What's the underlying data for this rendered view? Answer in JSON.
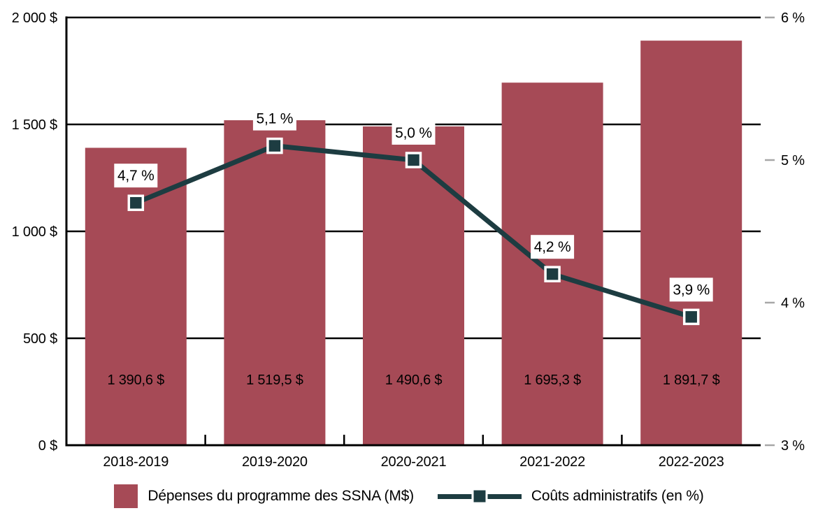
{
  "chart_data": {
    "type": "bar",
    "subtype": "combo-bar-line",
    "title": "",
    "categories": [
      "2018-2019",
      "2019-2020",
      "2020-2021",
      "2021-2022",
      "2022-2023"
    ],
    "series": [
      {
        "name": "Dépenses du programme des SSNA (M$)",
        "type": "bar",
        "axis": "left",
        "values": [
          1390.6,
          1519.5,
          1490.6,
          1695.3,
          1891.7
        ],
        "value_labels": [
          "1 390,6 $",
          "1 519,5 $",
          "1 490,6 $",
          "1 695,3 $",
          "1 891,7 $"
        ],
        "color": "#a64a56"
      },
      {
        "name": "Coûts administratifs (en %)",
        "type": "line",
        "axis": "right",
        "values": [
          4.7,
          5.1,
          5.0,
          4.2,
          3.9
        ],
        "value_labels": [
          "4,7 %",
          "5,1 %",
          "5,0 %",
          "4,2 %",
          "3,9 %"
        ],
        "color": "#1d3c41"
      }
    ],
    "left_axis": {
      "range": [
        0,
        2000
      ],
      "ticks": [
        0,
        500,
        1000,
        1500,
        2000
      ],
      "labels": [
        "0 $",
        "500 $",
        "1 000 $",
        "1 500 $",
        "2 000 $"
      ]
    },
    "right_axis": {
      "range": [
        3,
        6
      ],
      "ticks": [
        3,
        4,
        5,
        6
      ],
      "labels": [
        "3 %",
        "4 %",
        "5 %",
        "6 %"
      ]
    },
    "grid": "horizontal lines at left-axis ticks",
    "legend_position": "bottom"
  },
  "colors": {
    "background": "#ffffff",
    "bar": "#a64a56",
    "line": "#1d3c41",
    "axis": "#000000",
    "right_tick_dash": "#a7a7a7",
    "label_box_bg": "#ffffff",
    "label_text": "#000000",
    "bar_value_text": "#ffffff"
  }
}
